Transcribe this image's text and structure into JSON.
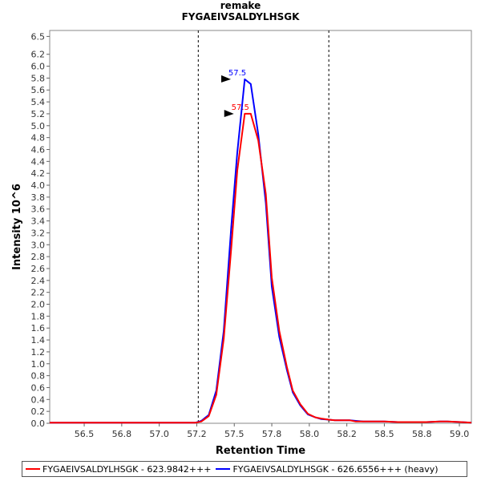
{
  "header": {
    "title": "remake",
    "subtitle": "FYGAEIVSALDYLHSGK"
  },
  "chart_data": {
    "type": "line",
    "title": "remake",
    "subtitle": "FYGAEIVSALDYLHSGK",
    "xlabel": "Retention Time",
    "ylabel": "Intensity 10^6",
    "xlim": [
      56.27,
      59.08
    ],
    "ylim": [
      0,
      6.6
    ],
    "x_ticks": [
      "56.5",
      "56.8",
      "57.0",
      "57.2",
      "57.5",
      "57.8",
      "58.0",
      "58.2",
      "58.5",
      "58.8",
      "59.0"
    ],
    "x_tick_values": [
      56.5,
      56.75,
      57.0,
      57.25,
      57.5,
      57.75,
      58.0,
      58.25,
      58.5,
      58.75,
      59.0
    ],
    "y_ticks": [
      "0.0",
      "0.2",
      "0.4",
      "0.6",
      "0.8",
      "1.0",
      "1.2",
      "1.4",
      "1.6",
      "1.8",
      "2.0",
      "2.2",
      "2.4",
      "2.6",
      "2.8",
      "3.0",
      "3.2",
      "3.4",
      "3.6",
      "3.8",
      "4.0",
      "4.2",
      "4.4",
      "4.6",
      "4.8",
      "5.0",
      "5.2",
      "5.4",
      "5.6",
      "5.8",
      "6.0",
      "6.2",
      "6.5"
    ],
    "y_tick_values": [
      0,
      0.2,
      0.4,
      0.6,
      0.8,
      1.0,
      1.2,
      1.4,
      1.6,
      1.8,
      2.0,
      2.2,
      2.4,
      2.6,
      2.8,
      3.0,
      3.2,
      3.4,
      3.6,
      3.8,
      4.0,
      4.2,
      4.4,
      4.6,
      4.8,
      5.0,
      5.2,
      5.4,
      5.6,
      5.8,
      6.0,
      6.2,
      6.5
    ],
    "vlines": [
      57.26,
      58.13
    ],
    "grid": false,
    "legend": "bottom",
    "series": [
      {
        "name": "FYGAEIVSALDYLHSGK - 623.9842+++",
        "color": "#ff0000",
        "peak_label": "57.5",
        "peak": {
          "x": 57.54,
          "y": 5.2
        },
        "x": [
          56.27,
          57.24,
          57.28,
          57.33,
          57.38,
          57.43,
          57.48,
          57.52,
          57.57,
          57.61,
          57.66,
          57.71,
          57.75,
          57.8,
          57.85,
          57.89,
          57.94,
          57.99,
          58.04,
          58.08,
          58.13,
          58.17,
          58.22,
          58.27,
          58.31,
          58.36,
          58.41,
          58.5,
          58.59,
          58.69,
          58.78,
          58.87,
          58.92,
          59.01,
          59.08
        ],
        "y": [
          0.01,
          0.01,
          0.03,
          0.12,
          0.48,
          1.42,
          2.95,
          4.25,
          5.2,
          5.2,
          4.75,
          3.85,
          2.45,
          1.55,
          0.95,
          0.55,
          0.32,
          0.16,
          0.1,
          0.08,
          0.06,
          0.05,
          0.05,
          0.05,
          0.03,
          0.03,
          0.03,
          0.03,
          0.02,
          0.02,
          0.02,
          0.03,
          0.03,
          0.02,
          0.01
        ]
      },
      {
        "name": "FYGAEIVSALDYLHSGK - 626.6556+++ (heavy)",
        "color": "#0000ff",
        "peak_label": "57.5",
        "peak": {
          "x": 57.52,
          "y": 5.78
        },
        "x": [
          56.27,
          57.24,
          57.28,
          57.33,
          57.38,
          57.43,
          57.48,
          57.52,
          57.57,
          57.61,
          57.66,
          57.71,
          57.75,
          57.8,
          57.85,
          57.89,
          57.94,
          57.99,
          58.04,
          58.08,
          58.13,
          58.17,
          58.22,
          58.27,
          58.31,
          58.36,
          58.41,
          58.5,
          58.59,
          58.69,
          58.78,
          58.87,
          58.92,
          59.01,
          59.08
        ],
        "y": [
          0.01,
          0.01,
          0.04,
          0.14,
          0.55,
          1.55,
          3.3,
          4.55,
          5.78,
          5.7,
          4.85,
          3.7,
          2.3,
          1.45,
          0.9,
          0.52,
          0.3,
          0.15,
          0.1,
          0.07,
          0.06,
          0.05,
          0.05,
          0.05,
          0.04,
          0.03,
          0.03,
          0.03,
          0.02,
          0.02,
          0.02,
          0.03,
          0.03,
          0.02,
          0.01
        ]
      }
    ]
  }
}
